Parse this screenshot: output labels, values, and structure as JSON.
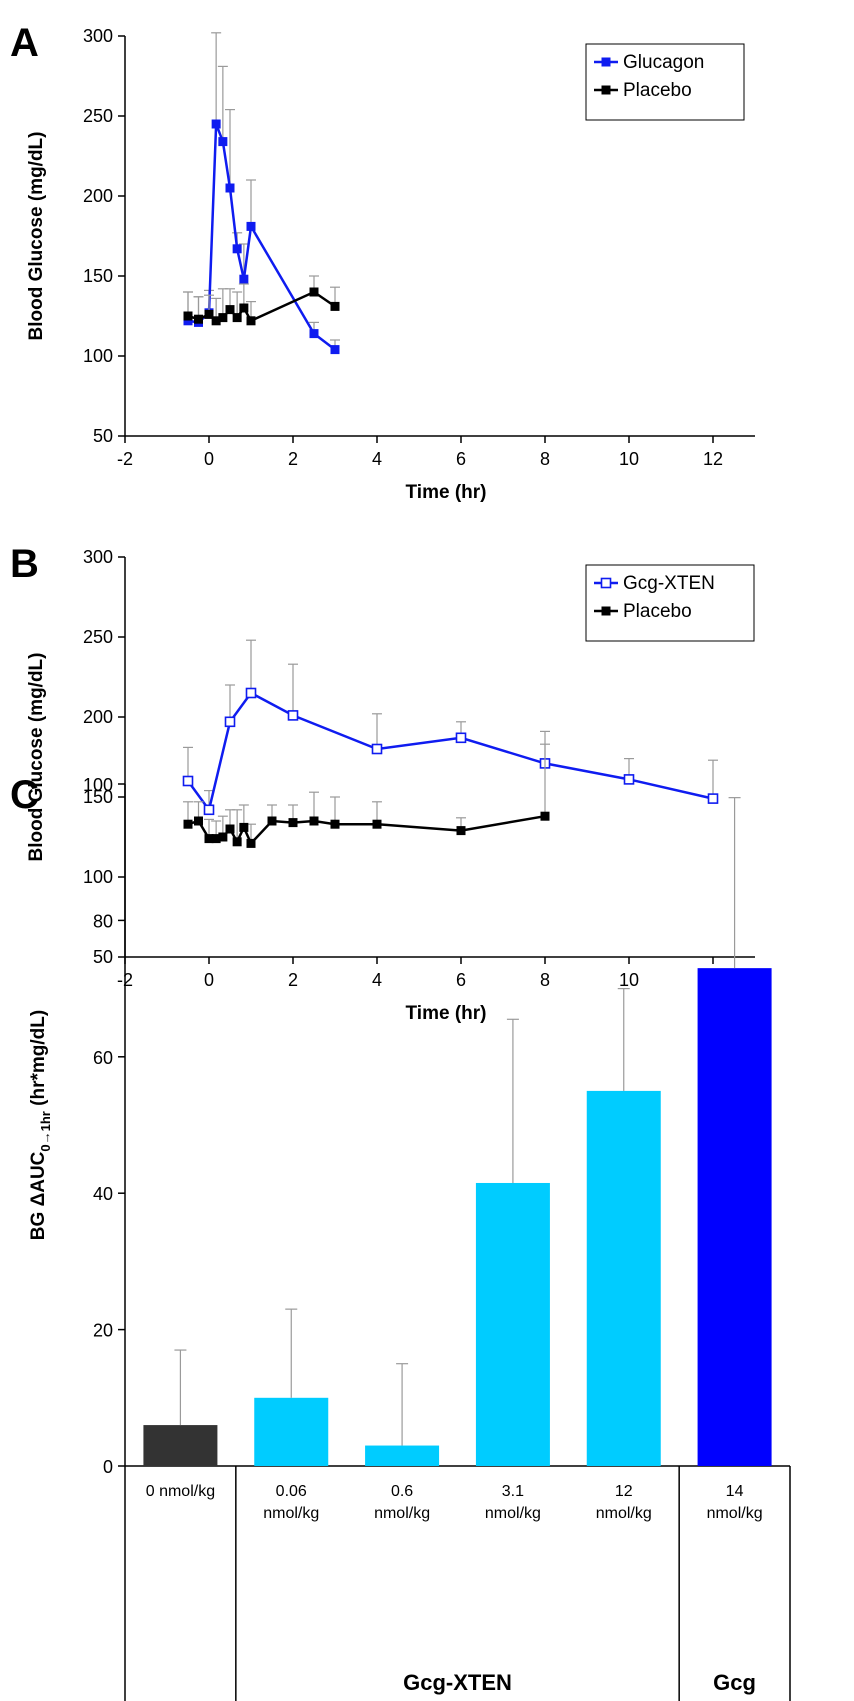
{
  "chart_data": [
    {
      "type": "line",
      "panel_label": "A",
      "xlabel": "Time (hr)",
      "ylabel": "Blood Glucose (mg/dL)",
      "xlim": [
        -2,
        13
      ],
      "ylim": [
        50,
        300
      ],
      "xticks": [
        -2,
        0,
        2,
        4,
        6,
        8,
        10,
        12
      ],
      "yticks": [
        50,
        100,
        150,
        200,
        250,
        300
      ],
      "legend_position": "top-right",
      "series": [
        {
          "name": "Glucagon",
          "color": "#0f1cf0",
          "marker": "filled-square",
          "x": [
            -0.5,
            -0.25,
            0,
            0.17,
            0.33,
            0.5,
            0.67,
            0.83,
            1,
            2.5,
            3
          ],
          "y": [
            122,
            121,
            127,
            245,
            234,
            205,
            167,
            148,
            181,
            114,
            104
          ],
          "err": [
            18,
            16,
            14,
            57,
            47,
            49,
            10,
            22,
            29,
            7,
            6
          ]
        },
        {
          "name": "Placebo",
          "color": "#000000",
          "marker": "filled-square",
          "x": [
            -0.5,
            -0.25,
            0,
            0.17,
            0.33,
            0.5,
            0.67,
            0.83,
            1,
            2.5,
            3
          ],
          "y": [
            125,
            123,
            126,
            122,
            124,
            129,
            124,
            130,
            122,
            140,
            131
          ],
          "err": [
            15,
            14,
            12,
            14,
            18,
            13,
            16,
            15,
            12,
            10,
            12
          ]
        }
      ]
    },
    {
      "type": "line",
      "panel_label": "B",
      "xlabel": "Time (hr)",
      "ylabel": "Blood Glucose (mg/dL)",
      "xlim": [
        -2,
        13
      ],
      "ylim": [
        50,
        300
      ],
      "xticks": [
        -2,
        0,
        2,
        4,
        6,
        8,
        10,
        12
      ],
      "yticks": [
        50,
        100,
        150,
        200,
        250,
        300
      ],
      "legend_position": "top-right",
      "series": [
        {
          "name": "Gcg-XTEN",
          "color": "#0f1cf0",
          "marker": "open-square",
          "x": [
            -0.5,
            0,
            0.5,
            1,
            2,
            4,
            6,
            8,
            10,
            12
          ],
          "y": [
            160,
            142,
            197,
            215,
            201,
            180,
            187,
            171,
            161,
            149
          ],
          "err": [
            21,
            12,
            23,
            33,
            32,
            22,
            10,
            12,
            13,
            24
          ]
        },
        {
          "name": "Placebo",
          "color": "#000000",
          "marker": "filled-square",
          "x": [
            -0.5,
            -0.25,
            0,
            0.17,
            0.33,
            0.5,
            0.67,
            0.83,
            1,
            1.5,
            2,
            2.5,
            3,
            4,
            6,
            8
          ],
          "y": [
            133,
            135,
            124,
            124,
            125,
            130,
            122,
            131,
            121,
            135,
            134,
            135,
            133,
            133,
            129,
            138
          ],
          "err": [
            14,
            12,
            12,
            11,
            13,
            12,
            20,
            14,
            12,
            10,
            11,
            18,
            17,
            14,
            8,
            53
          ]
        }
      ]
    },
    {
      "type": "bar",
      "panel_label": "C",
      "ylabel_main": "BG ΔAUC",
      "ylabel_sub": "0→1hr",
      "ylabel_unit": " (hr*mg/dL)",
      "ylim": [
        0,
        100
      ],
      "yticks": [
        0,
        20,
        40,
        60,
        80,
        100
      ],
      "categories": [
        [
          "0 nmol/kg"
        ],
        [
          "0.06",
          "nmol/kg"
        ],
        [
          "0.6",
          "nmol/kg"
        ],
        [
          "3.1",
          "nmol/kg"
        ],
        [
          "12",
          "nmol/kg"
        ],
        [
          "14",
          "nmol/kg"
        ]
      ],
      "values": [
        6,
        10,
        3,
        41.5,
        55,
        73
      ],
      "errors": [
        11,
        13,
        12,
        24,
        15,
        25
      ],
      "colors": [
        "#333333",
        "#00ccff",
        "#00ccff",
        "#00ccff",
        "#00ccff",
        "#0000ff"
      ],
      "groups": [
        {
          "label": "",
          "start": 0,
          "end": 0
        },
        {
          "label": "Gcg-XTEN",
          "start": 1,
          "end": 4
        },
        {
          "label": "Gcg",
          "start": 5,
          "end": 5
        }
      ]
    }
  ]
}
